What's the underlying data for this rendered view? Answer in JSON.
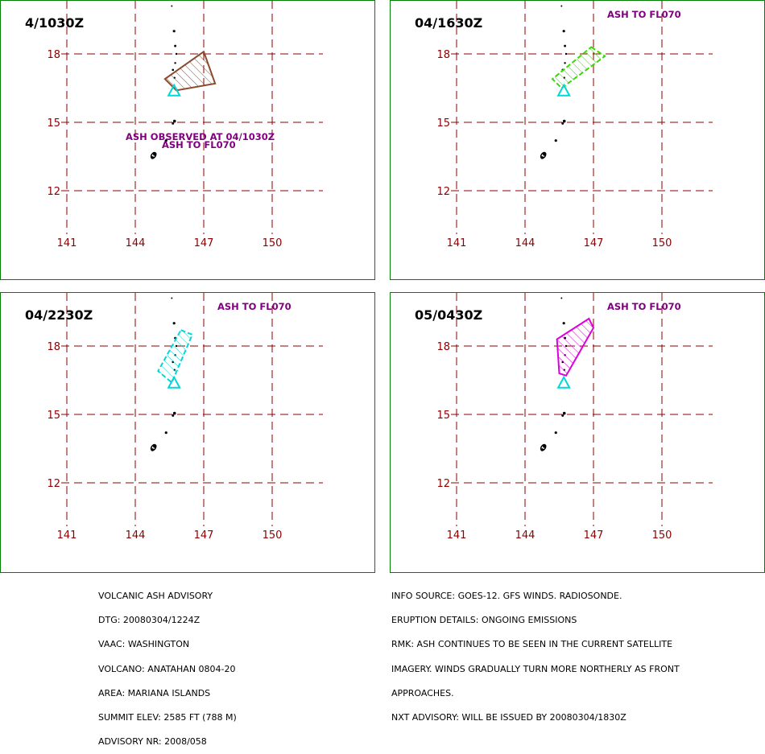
{
  "panels": [
    {
      "time": "4/1030Z",
      "labels": [
        "ASH OBSERVED AT 04/1030Z",
        "ASH TO FL070"
      ],
      "ash_color": "#8b4a2b",
      "ash_style": "solid",
      "ash_polygon": [
        [
          147.0,
          18.1
        ],
        [
          147.5,
          16.7
        ],
        [
          145.8,
          16.4
        ],
        [
          145.3,
          16.9
        ]
      ]
    },
    {
      "time": "04/1630Z",
      "labels": [
        "ASH TO FL070"
      ],
      "ash_color": "#33dd00",
      "ash_style": "dashed",
      "ash_polygon": [
        [
          146.9,
          18.3
        ],
        [
          147.5,
          17.9
        ],
        [
          145.6,
          16.5
        ],
        [
          145.2,
          16.9
        ]
      ]
    },
    {
      "time": "04/2230Z",
      "labels": [
        "ASH TO FL070"
      ],
      "ash_color": "#00d8d8",
      "ash_style": "dashed",
      "ash_polygon": [
        [
          146.0,
          18.7
        ],
        [
          146.5,
          18.5
        ],
        [
          145.6,
          16.4
        ],
        [
          145.0,
          16.9
        ]
      ]
    },
    {
      "time": "05/0430Z",
      "labels": [
        "ASH TO FL070"
      ],
      "ash_color": "#dd00dd",
      "ash_style": "solid",
      "ash_polygon": [
        [
          146.8,
          19.2
        ],
        [
          147.0,
          18.8
        ],
        [
          145.8,
          16.7
        ],
        [
          145.5,
          16.8
        ],
        [
          145.4,
          18.3
        ]
      ]
    }
  ],
  "grid": {
    "lon_labels": [
      "141",
      "144",
      "147",
      "150"
    ],
    "lat_labels": [
      "18",
      "15",
      "12"
    ],
    "lon_values": [
      141,
      144,
      147,
      150
    ],
    "lat_values": [
      18,
      15,
      12
    ]
  },
  "volcano_marker": {
    "lon": 145.7,
    "lat": 16.35
  },
  "colors": {
    "grid": "#8b0000",
    "label": "#800080",
    "frame": "#008000"
  },
  "advisory_left": [
    "VOLCANIC ASH ADVISORY",
    "DTG: 20080304/1224Z",
    "VAAC: WASHINGTON",
    "VOLCANO: ANATAHAN 0804-20",
    "AREA: MARIANA ISLANDS",
    "SUMMIT ELEV: 2585 FT (788 M)",
    "ADVISORY NR: 2008/058"
  ],
  "advisory_right": [
    "INFO SOURCE: GOES-12. GFS WINDS. RADIOSONDE.",
    "ERUPTION DETAILS: ONGOING EMISSIONS",
    "RMK: ASH CONTINUES TO BE SEEN IN THE CURRENT SATELLITE",
    "IMAGERY. WINDS GRADUALLY TURN MORE NORTHERLY AS FRONT",
    "APPROACHES.",
    "NXT ADVISORY: WILL BE ISSUED BY 20080304/1830Z"
  ]
}
